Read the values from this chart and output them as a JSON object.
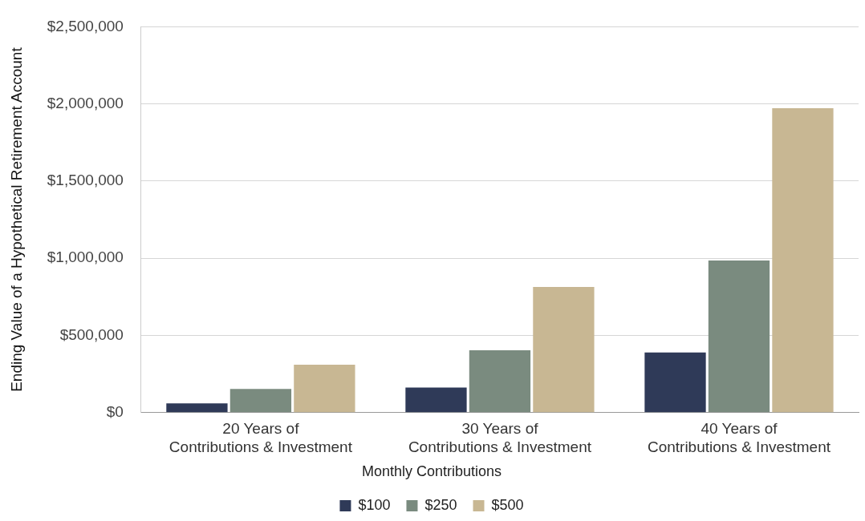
{
  "chart_data": {
    "type": "bar",
    "categories": [
      "20 Years of\nContributions & Investment",
      "30 Years of\nContributions & Investment",
      "40 Years of\nContributions & Investment"
    ],
    "series": [
      {
        "name": "$100",
        "color": "#2f3a58",
        "values": [
          60000,
          163000,
          390000
        ]
      },
      {
        "name": "$250",
        "color": "#7a8b7f",
        "values": [
          153000,
          404000,
          986000
        ]
      },
      {
        "name": "$500",
        "color": "#c8b793",
        "values": [
          311000,
          814000,
          1972000
        ]
      }
    ],
    "ylabel": "Ending Value of a Hypothetical Retirement Account",
    "legend_title": "Monthly Contributions",
    "ylim": [
      0,
      2500000
    ],
    "yticks": [
      {
        "value": 0,
        "label": "$0"
      },
      {
        "value": 500000,
        "label": "$500,000"
      },
      {
        "value": 1000000,
        "label": "$1,000,000"
      },
      {
        "value": 1500000,
        "label": "$1,500,000"
      },
      {
        "value": 2000000,
        "label": "$2,000,000"
      },
      {
        "value": 2500000,
        "label": "$2,500,000"
      }
    ],
    "grid": "y",
    "legend": "bottom"
  }
}
